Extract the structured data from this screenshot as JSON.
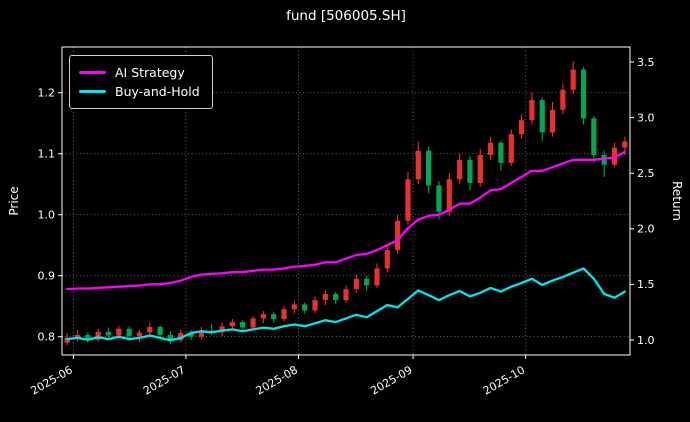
{
  "chart_data": {
    "type": "candlestick",
    "title": "fund [506005.SH]",
    "x_axis": {
      "labels": [
        "2025-06",
        "2025-07",
        "2025-08",
        "2025-09",
        "2025-10"
      ],
      "positions": [
        0.6,
        11.5,
        22.4,
        33.5,
        44.4
      ]
    },
    "left_axis": {
      "label": "Price",
      "ticks": [
        0.8,
        0.9,
        1.0,
        1.1,
        1.2
      ],
      "range": [
        0.77,
        1.275
      ]
    },
    "right_axis": {
      "label": "Return",
      "ticks": [
        1.0,
        1.5,
        2.0,
        2.5,
        3.0,
        3.5
      ],
      "range": [
        0.865,
        3.635
      ]
    },
    "colors": {
      "up": "#e8312f",
      "down": "#00a651",
      "background": "#000000",
      "grid": "#ffffff",
      "ai": "#ff00ff",
      "bh": "#00e5ee"
    },
    "candles": [
      [
        0.79,
        0.806,
        0.785,
        0.798
      ],
      [
        0.798,
        0.811,
        0.792,
        0.803
      ],
      [
        0.803,
        0.807,
        0.79,
        0.795
      ],
      [
        0.795,
        0.813,
        0.792,
        0.808
      ],
      [
        0.808,
        0.815,
        0.799,
        0.802
      ],
      [
        0.802,
        0.818,
        0.798,
        0.813
      ],
      [
        0.813,
        0.817,
        0.796,
        0.801
      ],
      [
        0.801,
        0.811,
        0.791,
        0.807
      ],
      [
        0.807,
        0.823,
        0.801,
        0.816
      ],
      [
        0.816,
        0.819,
        0.799,
        0.803
      ],
      [
        0.803,
        0.809,
        0.788,
        0.794
      ],
      [
        0.794,
        0.812,
        0.79,
        0.806
      ],
      [
        0.806,
        0.811,
        0.795,
        0.8
      ],
      [
        0.8,
        0.816,
        0.796,
        0.81
      ],
      [
        0.81,
        0.821,
        0.803,
        0.807
      ],
      [
        0.807,
        0.823,
        0.801,
        0.817
      ],
      [
        0.817,
        0.829,
        0.811,
        0.824
      ],
      [
        0.824,
        0.828,
        0.809,
        0.815
      ],
      [
        0.815,
        0.834,
        0.811,
        0.83
      ],
      [
        0.83,
        0.842,
        0.822,
        0.837
      ],
      [
        0.837,
        0.84,
        0.823,
        0.829
      ],
      [
        0.829,
        0.85,
        0.825,
        0.845
      ],
      [
        0.845,
        0.858,
        0.838,
        0.853
      ],
      [
        0.853,
        0.856,
        0.838,
        0.843
      ],
      [
        0.843,
        0.866,
        0.839,
        0.86
      ],
      [
        0.86,
        0.876,
        0.852,
        0.87
      ],
      [
        0.87,
        0.874,
        0.854,
        0.86
      ],
      [
        0.86,
        0.884,
        0.856,
        0.878
      ],
      [
        0.878,
        0.902,
        0.872,
        0.895
      ],
      [
        0.895,
        0.9,
        0.876,
        0.884
      ],
      [
        0.884,
        0.92,
        0.88,
        0.912
      ],
      [
        0.912,
        0.95,
        0.905,
        0.942
      ],
      [
        0.942,
        1.0,
        0.936,
        0.99
      ],
      [
        0.99,
        1.07,
        0.984,
        1.058
      ],
      [
        1.058,
        1.12,
        1.05,
        1.105
      ],
      [
        1.105,
        1.112,
        1.035,
        1.048
      ],
      [
        1.048,
        1.055,
        0.992,
        1.005
      ],
      [
        1.005,
        1.068,
        0.998,
        1.058
      ],
      [
        1.058,
        1.1,
        1.05,
        1.09
      ],
      [
        1.09,
        1.096,
        1.04,
        1.052
      ],
      [
        1.052,
        1.108,
        1.046,
        1.098
      ],
      [
        1.098,
        1.128,
        1.09,
        1.118
      ],
      [
        1.118,
        1.122,
        1.072,
        1.085
      ],
      [
        1.085,
        1.14,
        1.08,
        1.132
      ],
      [
        1.132,
        1.165,
        1.125,
        1.155
      ],
      [
        1.155,
        1.2,
        1.148,
        1.188
      ],
      [
        1.188,
        1.192,
        1.12,
        1.135
      ],
      [
        1.135,
        1.185,
        1.128,
        1.172
      ],
      [
        1.172,
        1.215,
        1.165,
        1.205
      ],
      [
        1.205,
        1.252,
        1.198,
        1.238
      ],
      [
        1.238,
        1.242,
        1.148,
        1.158
      ],
      [
        1.158,
        1.162,
        1.085,
        1.098
      ],
      [
        1.098,
        1.105,
        1.062,
        1.082
      ],
      [
        1.082,
        1.118,
        1.078,
        1.11
      ],
      [
        1.11,
        1.128,
        1.098,
        1.12
      ]
    ],
    "series": [
      {
        "name": "AI Strategy",
        "color": "#ff00ff",
        "values": [
          0.878,
          0.879,
          0.879,
          0.88,
          0.881,
          0.882,
          0.883,
          0.884,
          0.886,
          0.886,
          0.888,
          0.892,
          0.898,
          0.902,
          0.903,
          0.904,
          0.906,
          0.906,
          0.908,
          0.91,
          0.91,
          0.912,
          0.915,
          0.916,
          0.918,
          0.922,
          0.922,
          0.928,
          0.934,
          0.936,
          0.942,
          0.95,
          0.958,
          0.978,
          0.992,
          0.998,
          1.0,
          1.008,
          1.018,
          1.018,
          1.028,
          1.04,
          1.042,
          1.052,
          1.062,
          1.072,
          1.072,
          1.078,
          1.084,
          1.09,
          1.09,
          1.09,
          1.092,
          1.094,
          1.103
        ]
      },
      {
        "name": "Buy-and-Hold",
        "color": "#00e5ee",
        "values": [
          0.796,
          0.798,
          0.795,
          0.799,
          0.796,
          0.8,
          0.796,
          0.798,
          0.802,
          0.798,
          0.794,
          0.798,
          0.806,
          0.809,
          0.807,
          0.81,
          0.812,
          0.809,
          0.812,
          0.815,
          0.813,
          0.817,
          0.82,
          0.817,
          0.822,
          0.827,
          0.824,
          0.83,
          0.836,
          0.832,
          0.842,
          0.852,
          0.848,
          0.862,
          0.876,
          0.868,
          0.86,
          0.868,
          0.875,
          0.866,
          0.872,
          0.88,
          0.874,
          0.882,
          0.888,
          0.895,
          0.885,
          0.892,
          0.898,
          0.905,
          0.912,
          0.895,
          0.87,
          0.864,
          0.874
        ]
      }
    ]
  }
}
